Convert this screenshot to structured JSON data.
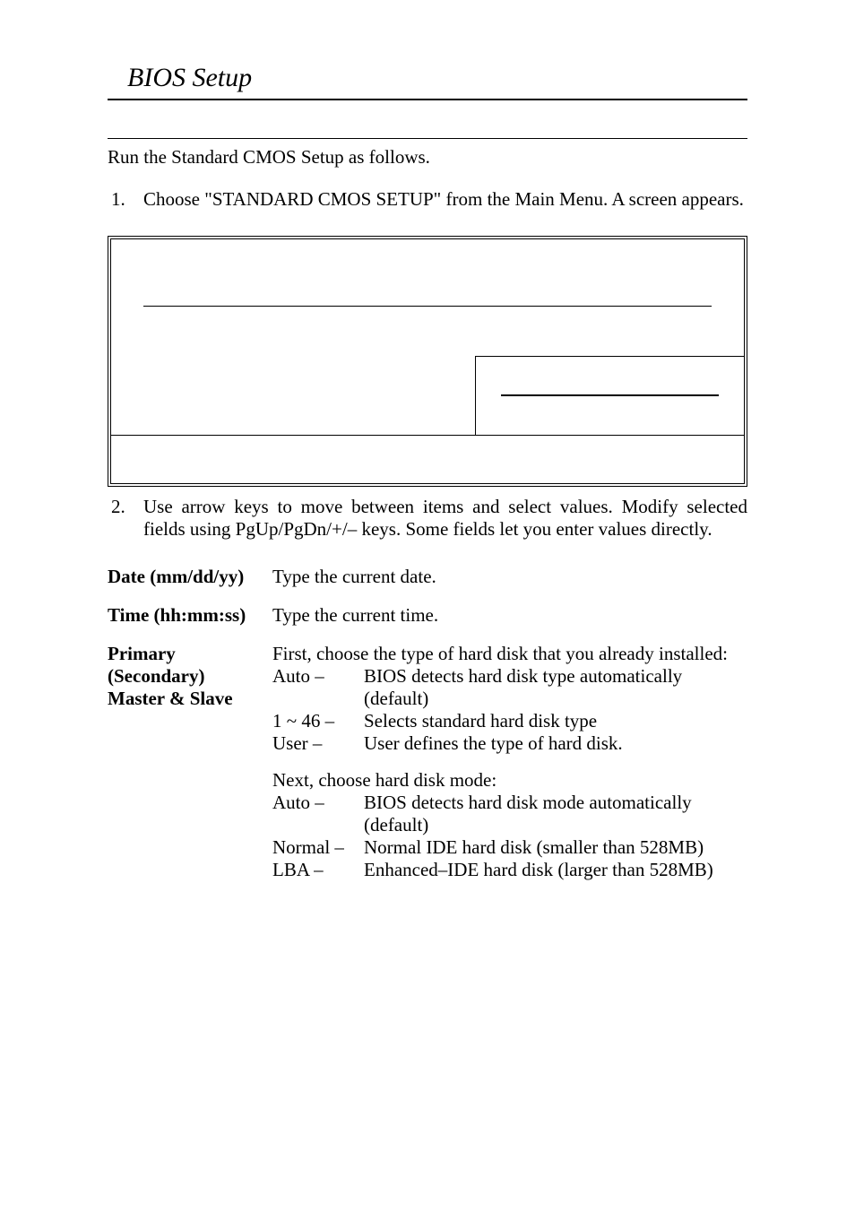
{
  "header": {
    "title": "BIOS Setup"
  },
  "intro": "Run the Standard CMOS Setup as follows.",
  "steps": [
    {
      "num": "1.",
      "text": "Choose \"STANDARD CMOS SETUP\" from the Main Menu. A screen appears."
    },
    {
      "num": "2.",
      "text": "Use arrow keys to move between items and select values. Modify selected fields using PgUp/PgDn/+/– keys. Some fields let you enter values directly."
    }
  ],
  "definitions": {
    "date": {
      "label": "Date (mm/dd/yy)",
      "desc": "Type the current date."
    },
    "time": {
      "label": "Time (hh:mm:ss)",
      "desc": "Type the current time."
    },
    "drives": {
      "label_l1": "Primary",
      "label_l2": "(Secondary)",
      "label_l3": "Master & Slave",
      "intro1": "First, choose the type of hard disk that you already installed:",
      "type_opts": [
        {
          "k": "Auto –",
          "v": "BIOS detects hard disk type automatically (default)"
        },
        {
          "k": "1 ~ 46 –",
          "v": "Selects standard hard disk type"
        },
        {
          "k": "User –",
          "v": "User defines the type of hard disk."
        }
      ],
      "intro2": "Next, choose hard disk mode:",
      "mode_opts": [
        {
          "k": "Auto –",
          "v": "BIOS detects hard disk mode automatically (default)"
        },
        {
          "k": "Normal –",
          "v": "Normal IDE hard disk (smaller than 528MB)"
        },
        {
          "k": "LBA –",
          "v": "Enhanced–IDE hard disk (larger than 528MB)"
        }
      ]
    }
  },
  "colors": {
    "text": "#000000",
    "bg": "#ffffff"
  },
  "fonts": {
    "body_size_pt": 16,
    "title_size_pt": 22
  }
}
